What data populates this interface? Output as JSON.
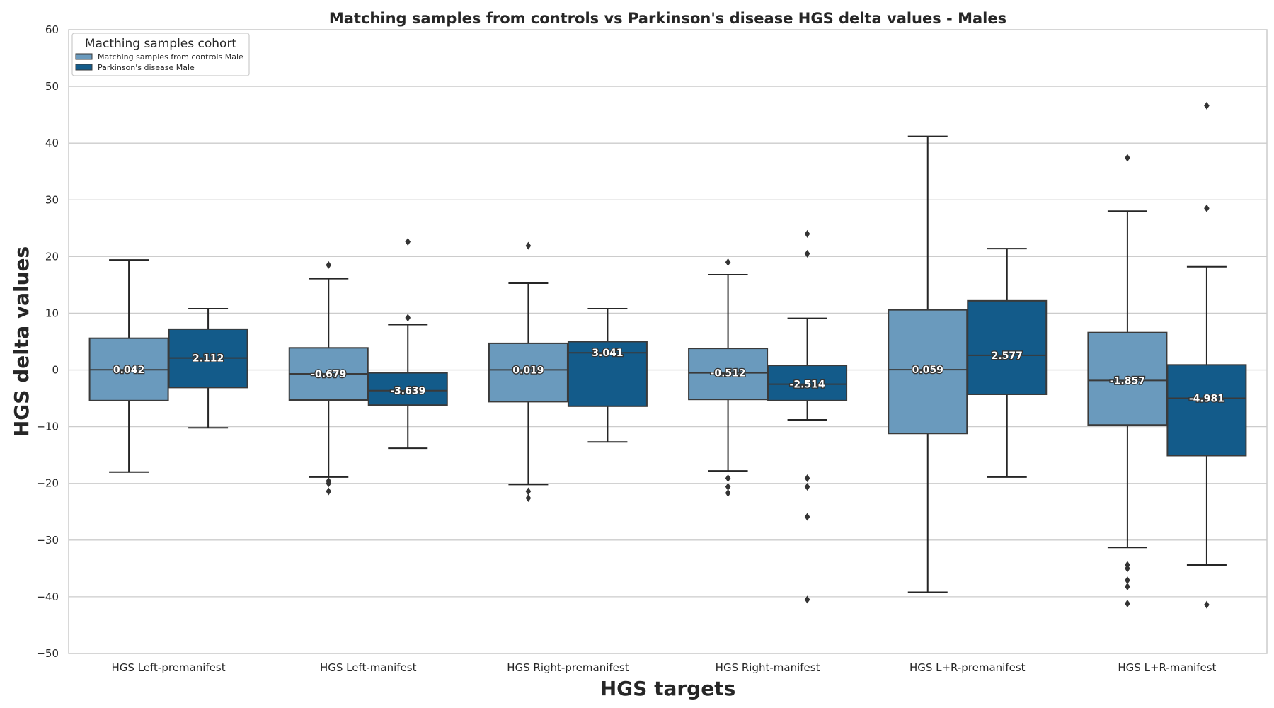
{
  "chart_data": {
    "type": "box",
    "title": "Matching samples from controls vs Parkinson's disease HGS delta values - Males",
    "xlabel": "HGS targets",
    "ylabel": "HGS delta values",
    "ylim": [
      -50,
      60
    ],
    "yticks": [
      60,
      50,
      40,
      30,
      20,
      10,
      0,
      -10,
      -20,
      -30,
      -40,
      -50
    ],
    "ytick_labels": [
      "60",
      "50",
      "40",
      "30",
      "20",
      "10",
      "0",
      "−10",
      "−20",
      "−30",
      "−40",
      "−50"
    ],
    "grid": true,
    "legend": {
      "title": "Macthing samples cohort",
      "location": "top-left"
    },
    "categories": [
      "HGS Left-premanifest",
      "HGS Left-manifest",
      "HGS Right-premanifest",
      "HGS Right-manifest",
      "HGS L+R-premanifest",
      "HGS L+R-manifest"
    ],
    "series": [
      {
        "name": "Matching samples from controls Male",
        "color": "#6a9abd",
        "boxes": [
          {
            "whisker_low": -18,
            "q1": -5.4,
            "median": 0.042,
            "q3": 5.6,
            "whisker_high": 19.4,
            "median_label": "0.042",
            "outliers": []
          },
          {
            "whisker_low": -18.9,
            "q1": -5.3,
            "median": -0.679,
            "q3": 3.9,
            "whisker_high": 16.1,
            "median_label": "-0.679",
            "outliers": [
              18.5,
              -19.6,
              -20.0,
              -21.4
            ]
          },
          {
            "whisker_low": -20.2,
            "q1": -5.6,
            "median": 0.019,
            "q3": 4.7,
            "whisker_high": 15.3,
            "median_label": "0.019",
            "outliers": [
              21.9,
              -21.4,
              -22.6
            ]
          },
          {
            "whisker_low": -17.8,
            "q1": -5.2,
            "median": -0.512,
            "q3": 3.8,
            "whisker_high": 16.8,
            "median_label": "-0.512",
            "outliers": [
              19.0,
              -19.1,
              -20.6,
              -21.7
            ]
          },
          {
            "whisker_low": -39.2,
            "q1": -11.2,
            "median": 0.059,
            "q3": 10.6,
            "whisker_high": 41.2,
            "median_label": "0.059",
            "outliers": []
          },
          {
            "whisker_low": -31.3,
            "q1": -9.7,
            "median": -1.857,
            "q3": 6.6,
            "whisker_high": 28.0,
            "median_label": "-1.857",
            "outliers": [
              37.4,
              -34.4,
              -35.0,
              -37.1,
              -38.2,
              -41.2
            ]
          }
        ]
      },
      {
        "name": "Parkinson's disease Male",
        "color": "#135b8a",
        "boxes": [
          {
            "whisker_low": -10.2,
            "q1": -3.1,
            "median": 2.112,
            "q3": 7.2,
            "whisker_high": 10.8,
            "median_label": "2.112",
            "outliers": []
          },
          {
            "whisker_low": -13.8,
            "q1": -6.2,
            "median": -3.639,
            "q3": -0.5,
            "whisker_high": 8.0,
            "median_label": "-3.639",
            "outliers": [
              22.6,
              9.2
            ]
          },
          {
            "whisker_low": -12.7,
            "q1": -6.4,
            "median": 3.041,
            "q3": 5.0,
            "whisker_high": 10.8,
            "median_label": "3.041",
            "outliers": []
          },
          {
            "whisker_low": -8.8,
            "q1": -5.4,
            "median": -2.514,
            "q3": 0.8,
            "whisker_high": 9.1,
            "median_label": "-2.514",
            "outliers": [
              24.0,
              20.5,
              -19.1,
              -20.6,
              -25.9,
              -40.5
            ]
          },
          {
            "whisker_low": -18.9,
            "q1": -4.3,
            "median": 2.577,
            "q3": 12.2,
            "whisker_high": 21.4,
            "median_label": "2.577",
            "outliers": []
          },
          {
            "whisker_low": -34.4,
            "q1": -15.1,
            "median": -4.981,
            "q3": 0.9,
            "whisker_high": 18.2,
            "median_label": "-4.981",
            "outliers": [
              46.6,
              28.5,
              -41.4
            ]
          }
        ]
      }
    ]
  }
}
